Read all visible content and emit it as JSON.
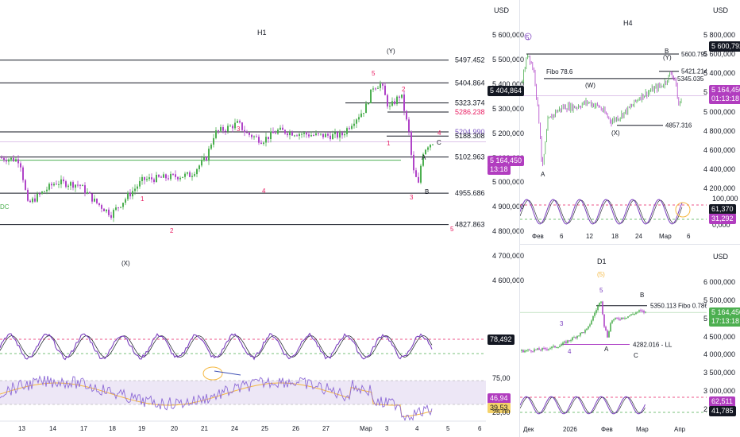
{
  "h1": {
    "title": "H1",
    "currency": "USD",
    "price_ticks": [
      "5 600,000",
      "5 500,000",
      "5 400,000",
      "5 300,000",
      "5 200,000",
      "5 100,000",
      "5 000,000",
      "4 900,000",
      "4 800,000",
      "4 700,000",
      "4 600,000"
    ],
    "levels": [
      {
        "label": "5497.452",
        "price": 5497.452,
        "color": "#131722"
      },
      {
        "label": "5404.864",
        "price": 5404.864,
        "color": "#131722"
      },
      {
        "label": "5323.374",
        "price": 5323.374,
        "color": "#131722"
      },
      {
        "label": "5286.238",
        "price": 5286.238,
        "color": "#e91e63"
      },
      {
        "label": "5204.990",
        "price": 5204.99,
        "color": "#7e57c2"
      },
      {
        "label": "5188.308",
        "price": 5188.308,
        "color": "#131722"
      },
      {
        "label": "5102.963",
        "price": 5102.963,
        "color": "#131722"
      },
      {
        "label": "4955.686",
        "price": 4955.686,
        "color": "#131722"
      },
      {
        "label": "4827.863",
        "price": 4827.863,
        "color": "#131722"
      }
    ],
    "last_price": "5 164,450",
    "last_time": "13:18",
    "level_tag": "5 404,864",
    "wave_labels": [
      "(Y)",
      "5",
      "2",
      "3",
      "1",
      "3",
      "4",
      "1",
      "2",
      "4",
      "C",
      "A",
      "B",
      "5",
      "(X)",
      "4",
      "3"
    ],
    "left_cut_label": "DC",
    "osc1_value": "78,492",
    "osc2_ticks": [
      "75,00",
      "25,00"
    ],
    "osc2_values": [
      "46,94",
      "39,53"
    ],
    "dates": [
      "13",
      "14",
      "17",
      "18",
      "19",
      "20",
      "21",
      "24",
      "25",
      "26",
      "27",
      "Мар",
      "3",
      "4",
      "5",
      "6"
    ]
  },
  "h4": {
    "title": "H4",
    "currency": "USD",
    "price_ticks": [
      "5 800,000",
      "5 600,000",
      "5 400,000",
      "5 200,000",
      "5 000,000",
      "4 800,000",
      "4 600,000",
      "4 400,000",
      "4 200,000"
    ],
    "levels": [
      {
        "label": "5600.792"
      },
      {
        "label": "5421.214"
      },
      {
        "label": "5345.035"
      },
      {
        "label": "4857.316"
      }
    ],
    "fibo_label": "Fibo 78.6",
    "last_price": "5 164,450",
    "last_time": "01:13:18",
    "level_tag": "5 600,792",
    "wave_labels": [
      "5",
      "(W)",
      "(X)",
      "(Y)",
      "B",
      "A"
    ],
    "osc_ticks": [
      "100,000",
      "50,000",
      "0,000"
    ],
    "osc_values": [
      "61,370",
      "31,292"
    ],
    "dates": [
      "Фев",
      "6",
      "12",
      "18",
      "24",
      "Мар",
      "6"
    ]
  },
  "d1": {
    "title": "D1",
    "currency": "USD",
    "price_ticks": [
      "6 000,000",
      "5 500,000",
      "5 000,000",
      "4 500,000",
      "4 000,000",
      "3 500,000",
      "3 000,000",
      "2 500,000"
    ],
    "last_price": "5 164,450",
    "last_time": "17:13:18",
    "fibo_label": "5350.113 Fibo 0.786",
    "ll_label": "4282.016 - LL",
    "wave_labels": [
      "(5)",
      "5",
      "3",
      "4",
      "A",
      "B",
      "C"
    ],
    "osc_values": [
      "62,511",
      "41,785"
    ],
    "dates": [
      "Дек",
      "2026",
      "Фев",
      "Мар",
      "Апр"
    ]
  },
  "colors": {
    "up": "#4caf50",
    "down": "#b044c8",
    "osc": "#7b3fbf",
    "rsi": "#8e6bd6",
    "ma": "#f5b841",
    "tag_purple": "#b13dbf",
    "tag_black": "#131722",
    "tag_green": "#4caf50",
    "wave_red": "#e91e63"
  }
}
